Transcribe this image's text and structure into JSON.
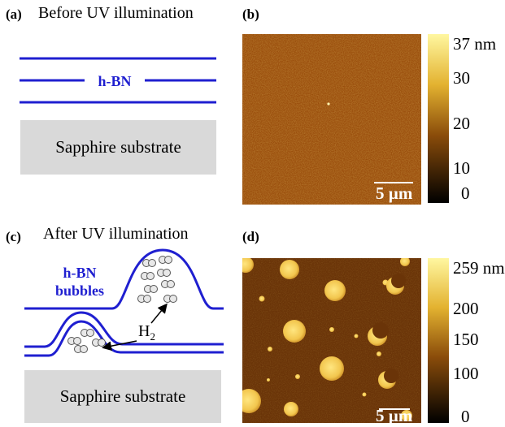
{
  "panel_a": {
    "label": "(a)",
    "title": "Before UV illumination",
    "hbn_label": "h-BN",
    "substrate": "Sapphire substrate"
  },
  "panel_b": {
    "label": "(b)",
    "scale_label": "5 µm",
    "colorbar": {
      "ticks": [
        "37 nm",
        "30",
        "20",
        "10",
        "0"
      ]
    }
  },
  "panel_c": {
    "label": "(c)",
    "title": "After UV illumination",
    "bubbles_label_1": "h-BN",
    "bubbles_label_2": "bubbles",
    "gas": "H",
    "gas_sub": "2",
    "substrate": "Sapphire substrate"
  },
  "panel_d": {
    "label": "(d)",
    "scale_label": "5 µm",
    "colorbar": {
      "ticks": [
        "259 nm",
        "200",
        "150",
        "100",
        "0"
      ]
    }
  },
  "colors": {
    "hbn_line": "#1f1fd0",
    "substrate": "#d9d9d9",
    "afm_background": "#6a3408",
    "afm_feature": "#f2c64e"
  }
}
